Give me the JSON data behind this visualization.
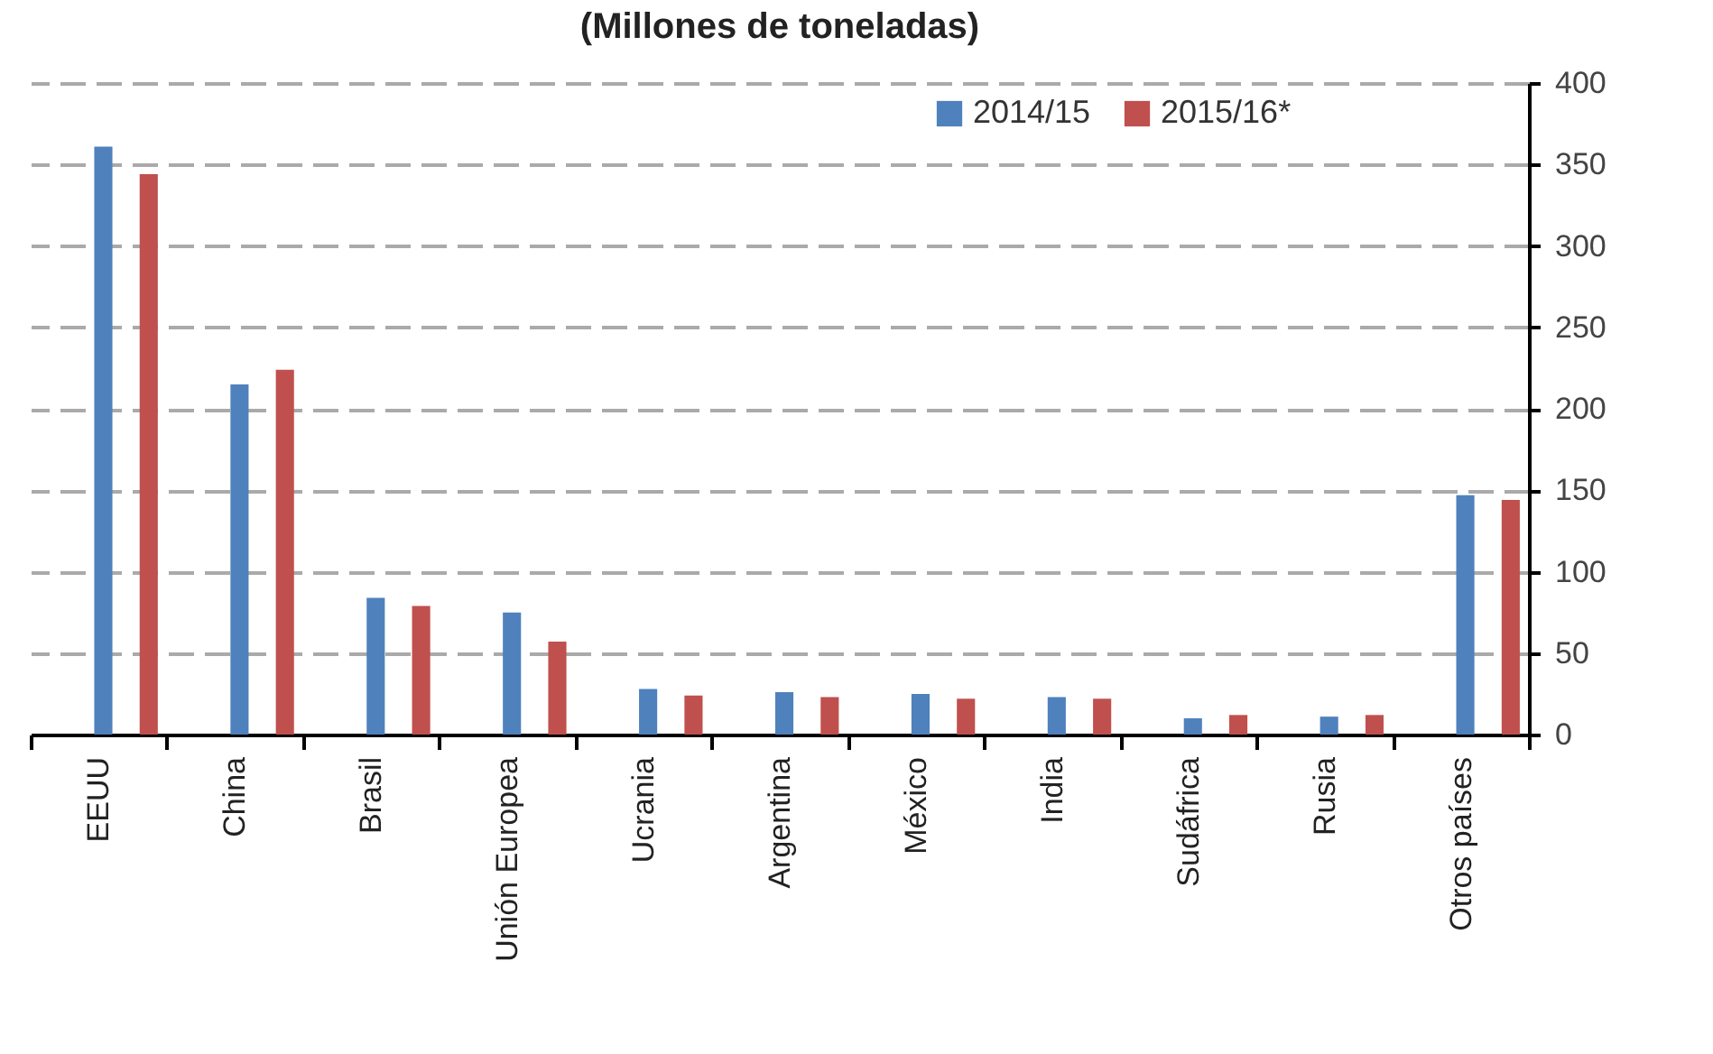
{
  "chart_data": {
    "type": "bar",
    "title": "(Millones de toneladas)",
    "categories": [
      "EEUU",
      "China",
      "Brasil",
      "Unión Europea",
      "Ucrania",
      "Argentina",
      "México",
      "India",
      "Sudáfrica",
      "Rusia",
      "Otros países"
    ],
    "series": [
      {
        "name": "2014/15",
        "color": "#4f81bd",
        "values": [
          361,
          215,
          84,
          75,
          28,
          26,
          25,
          23,
          10,
          11,
          147
        ]
      },
      {
        "name": "2015/16*",
        "color": "#c0504d",
        "values": [
          344,
          224,
          79,
          57,
          24,
          23,
          22,
          22,
          12,
          12,
          144
        ]
      }
    ],
    "ylim": [
      0,
      400
    ],
    "yticks": [
      0,
      50,
      100,
      150,
      200,
      250,
      300,
      350,
      400
    ],
    "grid": "y",
    "legend": "top right"
  }
}
